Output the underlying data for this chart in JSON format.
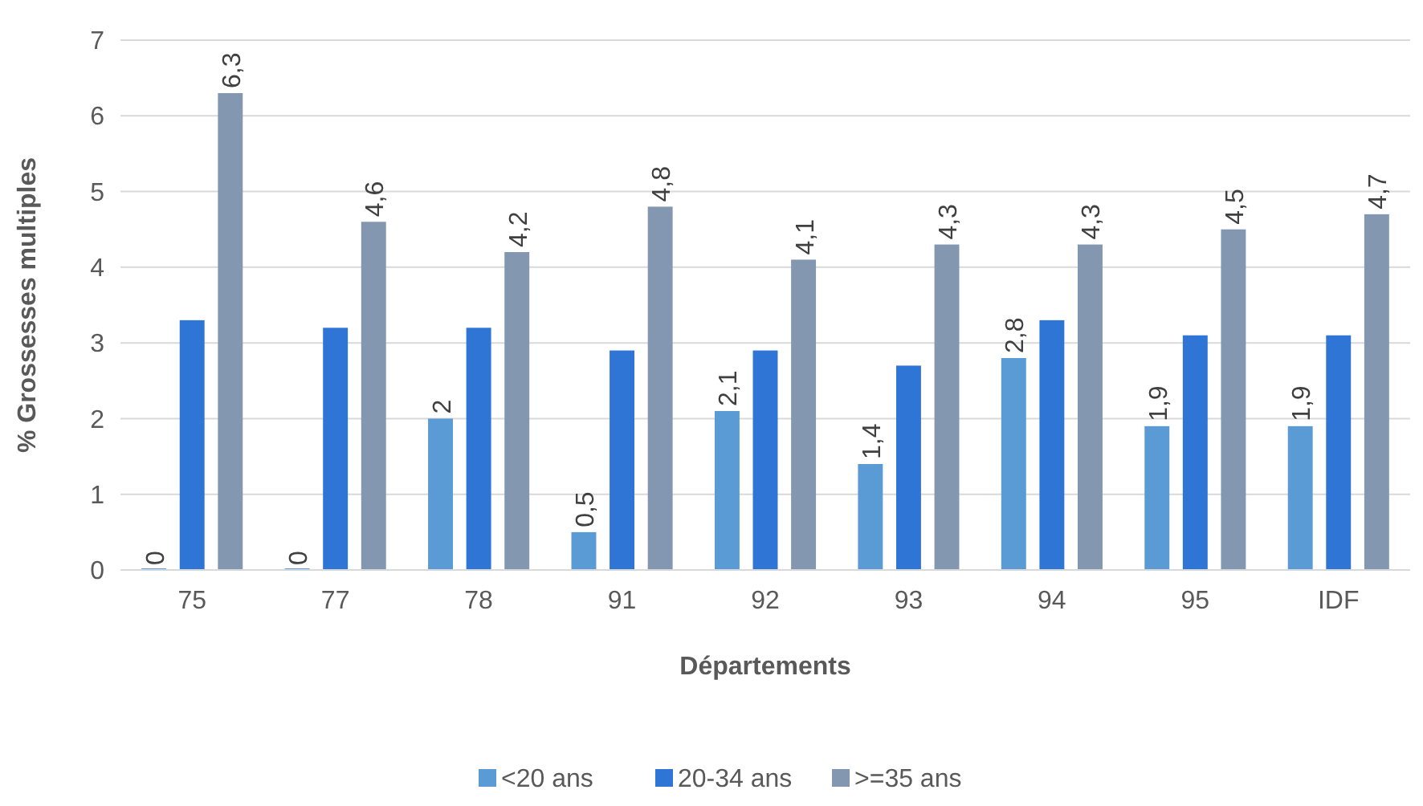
{
  "chart_data": {
    "type": "bar",
    "xlabel": "Départements",
    "ylabel": "% Grossesses multiples",
    "categories": [
      "75",
      "77",
      "78",
      "91",
      "92",
      "93",
      "94",
      "95",
      "IDF"
    ],
    "series": [
      {
        "name": "<20 ans",
        "color": "#5b9bd5",
        "values": [
          0,
          0,
          2,
          0.5,
          2.1,
          1.4,
          2.8,
          1.9,
          1.9
        ],
        "value_labels": [
          "0",
          "0",
          "2",
          "0,5",
          "2,1",
          "1,4",
          "2,8",
          "1,9",
          "1,9"
        ]
      },
      {
        "name": "20-34 ans",
        "color": "#2e75d6",
        "values": [
          3.3,
          3.2,
          3.2,
          2.9,
          2.9,
          2.7,
          3.3,
          3.1,
          3.1
        ]
      },
      {
        "name": ">=35 ans",
        "color": "#8497b0",
        "values": [
          6.3,
          4.6,
          4.2,
          4.8,
          4.1,
          4.3,
          4.3,
          4.5,
          4.7
        ],
        "value_labels": [
          "6,3",
          "4,6",
          "4,2",
          "4,8",
          "4,1",
          "4,3",
          "4,3",
          "4,5",
          "4,7"
        ]
      }
    ],
    "ylim": [
      0,
      7
    ],
    "yticks": [
      0,
      1,
      2,
      3,
      4,
      5,
      6,
      7
    ],
    "grid": "y",
    "legend": "bottom"
  }
}
